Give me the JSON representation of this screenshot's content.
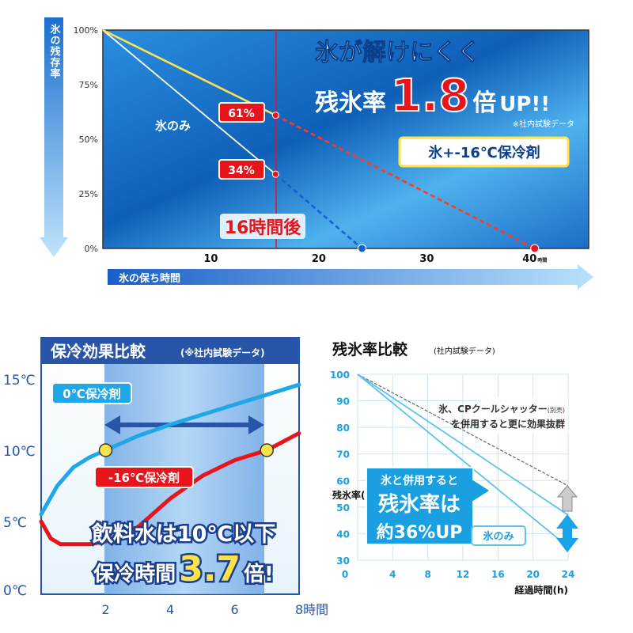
{
  "chart_data": [
    {
      "type": "line",
      "ylabel": "氷の残存率",
      "xlabel": "氷の保ち時間",
      "x_ticks": [
        10,
        20,
        30,
        40
      ],
      "x_tick_unit": "時間",
      "y_ticks": [
        "100%",
        "75%",
        "50%",
        "25%",
        "0%"
      ],
      "xlim": [
        0,
        45
      ],
      "ylim": [
        0,
        100
      ],
      "series": [
        {
          "name": "氷のみ",
          "points": [
            [
              0,
              100
            ],
            [
              16,
              34
            ],
            [
              24,
              0
            ]
          ]
        },
        {
          "name": "氷+-16℃保冷剤",
          "points": [
            [
              0,
              100
            ],
            [
              16,
              61
            ],
            [
              40,
              0
            ]
          ]
        }
      ],
      "marker_line_label": "16時間後",
      "marker_line_x": 16,
      "labels": [
        "61%",
        "34%"
      ],
      "headline_1": "氷が解けにくく",
      "headline_2a": "残氷率",
      "headline_2b": "1.8",
      "headline_2c": "倍",
      "headline_2d": "UP!!",
      "note": "※社内試験データ",
      "legend_ice_combo": "氷+-16℃保冷剤",
      "legend_ice_only": "氷のみ",
      "colors": {
        "ice_only": "#ffffff",
        "combo": "#ffe14a",
        "combo_dashed": "#ff3a1f",
        "accent_red": "#e8141c",
        "bg_blue": "#1f7fd0"
      }
    },
    {
      "type": "line",
      "title": "保冷効果比較",
      "title_note": "(※社内試験データ)",
      "y_ticks": [
        "15℃",
        "10℃",
        "5℃",
        "0℃"
      ],
      "x_ticks": [
        "2",
        "4",
        "6",
        "8時間"
      ],
      "xlim": [
        0,
        8
      ],
      "ylim": [
        0,
        15
      ],
      "series": [
        {
          "name": "0℃保冷剤",
          "points": [
            [
              0,
              5.5
            ],
            [
              0.5,
              7.5
            ],
            [
              1,
              8.8
            ],
            [
              1.5,
              9.5
            ],
            [
              2,
              10
            ],
            [
              3,
              11
            ],
            [
              4,
              11.8
            ],
            [
              5,
              12.5
            ],
            [
              6,
              13.2
            ],
            [
              7,
              13.9
            ],
            [
              8,
              14.6
            ]
          ]
        },
        {
          "name": "-16℃保冷剤",
          "points": [
            [
              0,
              5
            ],
            [
              0.3,
              3.8
            ],
            [
              0.6,
              3.4
            ],
            [
              1,
              3.4
            ],
            [
              1.5,
              3.4
            ],
            [
              2,
              3.6
            ],
            [
              3,
              4.6
            ],
            [
              4,
              6.6
            ],
            [
              5,
              8.2
            ],
            [
              6,
              9.3
            ],
            [
              7,
              10
            ],
            [
              8,
              11.2
            ]
          ]
        }
      ],
      "highlight_range": [
        2,
        7
      ],
      "threshold_points": [
        [
          2,
          10
        ],
        [
          7,
          10
        ]
      ],
      "headline_1": "飲料水は10℃以下",
      "headline_2a": "保冷時間",
      "headline_2b": "3.7",
      "headline_2c": "倍!",
      "colors": {
        "zero": "#1fa7e8",
        "minus16": "#e8141c",
        "header": "#2855a8"
      }
    },
    {
      "type": "line",
      "title": "残氷率比較",
      "title_note": "(社内試験データ)",
      "xlabel": "経過時間(h)",
      "ylabel": "残氷率(%)",
      "x_ticks": [
        0,
        4,
        8,
        12,
        16,
        20,
        24
      ],
      "y_ticks": [
        100,
        90,
        80,
        70,
        60,
        50,
        40,
        30
      ],
      "xlim": [
        0,
        24
      ],
      "ylim": [
        30,
        100
      ],
      "series": [
        {
          "name": "氷、CPクールシャッター(別売)",
          "points": [
            [
              0,
              100
            ],
            [
              24,
              58
            ]
          ]
        },
        {
          "name": "氷と併用",
          "points": [
            [
              0,
              100
            ],
            [
              24,
              47
            ]
          ]
        },
        {
          "name": "氷のみ",
          "points": [
            [
              0,
              100
            ],
            [
              24,
              35
            ]
          ]
        }
      ],
      "callout_grey": "氷、CPクールシャッター",
      "callout_grey_small": "(別売)",
      "callout_grey_2": "を併用すると更に効果抜群",
      "callout_blue_1": "氷と併用すると",
      "callout_blue_2": "残氷率は",
      "callout_blue_3": "約36%UP",
      "legend_ice_only": "氷のみ",
      "colors": {
        "grid": "#c9e6f3",
        "lines": "#5cc4ea",
        "callout": "#1a9fe0"
      }
    }
  ]
}
